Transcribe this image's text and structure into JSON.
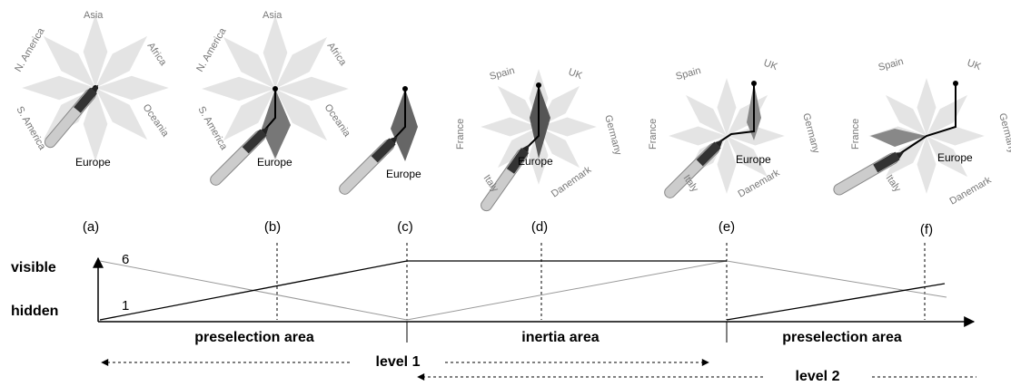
{
  "menus": [
    {
      "labels": [
        "Asia",
        "Africa",
        "Oceania",
        "Europe",
        "S. America",
        "N. America"
      ]
    },
    {
      "labels": [
        "Asia",
        "Africa",
        "Oceania",
        "Europe",
        "S. America",
        "N. America"
      ]
    },
    {
      "labels": [
        "Europe"
      ]
    },
    {
      "labels": [
        "Spain",
        "UK",
        "Germany",
        "Danemark",
        "Europe",
        "Italy",
        "France"
      ]
    },
    {
      "labels": [
        "Spain",
        "UK",
        "Germany",
        "Danemark",
        "Europe",
        "Italy",
        "France"
      ]
    },
    {
      "labels": [
        "Spain",
        "UK",
        "Germany",
        "Danemark",
        "Europe",
        "Italy",
        "France"
      ]
    }
  ],
  "steps": [
    "(a)",
    "(b)",
    "(c)",
    "(d)",
    "(e)",
    "(f)"
  ],
  "states": [
    "visible",
    "hidden"
  ],
  "counts": [
    "6",
    "1"
  ],
  "areas": [
    "preselection area",
    "inertia area",
    "preselection area"
  ],
  "levels": [
    "level 1",
    "level 2"
  ]
}
